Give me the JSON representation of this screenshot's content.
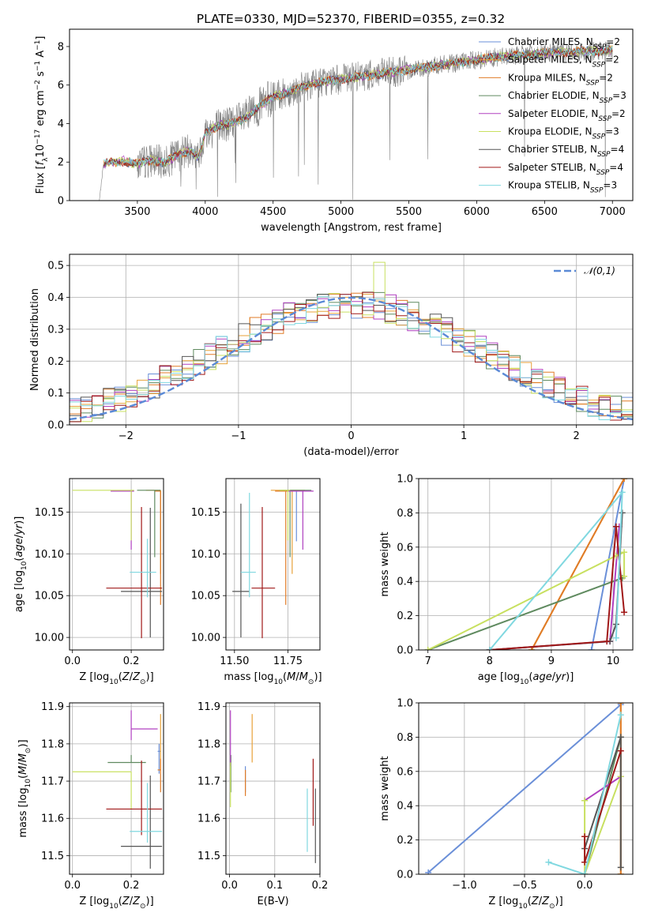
{
  "title": "PLATE=0330, MJD=52370, FIBERID=0355, z=0.32",
  "models": [
    {
      "name": "Chabrier MILES",
      "nssp": "2",
      "color": "#6a8fd8"
    },
    {
      "name": "Salpeter MILES",
      "nssp": "2",
      "color": "#e8a23a"
    },
    {
      "name": "Kroupa MILES",
      "nssp": "2",
      "color": "#e07b27"
    },
    {
      "name": "Chabrier ELODIE",
      "nssp": "3",
      "color": "#5f8a5f"
    },
    {
      "name": "Salpeter ELODIE",
      "nssp": "2",
      "color": "#b040c0"
    },
    {
      "name": "Kroupa ELODIE",
      "nssp": "3",
      "color": "#c8e060"
    },
    {
      "name": "Chabrier STELIB",
      "nssp": "4",
      "color": "#555555"
    },
    {
      "name": "Salpeter STELIB",
      "nssp": "4",
      "color": "#a01818"
    },
    {
      "name": "Kroupa STELIB",
      "nssp": "3",
      "color": "#80d8e0"
    }
  ],
  "chart_data": [
    {
      "id": "spectrum",
      "type": "line",
      "xlabel": "wavelength [Angstrom, rest frame]",
      "ylabel": "Flux [f_λ 10^-17 erg cm^-2 s^-1 A^-1]",
      "xlim": [
        3000,
        7150
      ],
      "ylim": [
        0,
        8.9
      ],
      "xticks": [
        3500,
        4000,
        4500,
        5000,
        5500,
        6000,
        6500,
        7000
      ],
      "yticks": [
        0,
        2,
        4,
        6,
        8
      ],
      "legend_loc": "upper-right",
      "x_start": 3220,
      "x_end": 7000,
      "model_continuum": {
        "x": [
          3220,
          3250,
          3400,
          3500,
          3600,
          3700,
          3800,
          3900,
          3950,
          4000,
          4100,
          4200,
          4300,
          4400,
          4500,
          4600,
          4800,
          5000,
          5200,
          5400,
          5600,
          5800,
          6000,
          6200,
          6400,
          6600,
          6800,
          7000
        ],
        "y": [
          0,
          1.9,
          2.05,
          1.9,
          2.1,
          1.95,
          2.4,
          2.6,
          2.2,
          3.5,
          3.9,
          4.0,
          4.3,
          4.9,
          5.4,
          5.6,
          6.1,
          6.3,
          6.5,
          6.7,
          6.9,
          7.1,
          7.3,
          7.5,
          7.6,
          7.7,
          7.75,
          7.8
        ]
      },
      "grey_color": "#808080"
    },
    {
      "id": "residuals",
      "type": "histogram",
      "xlabel": "(data-model)/error",
      "ylabel": "Normed distribution",
      "xlim": [
        -2.5,
        2.5
      ],
      "ylim": [
        0,
        0.535
      ],
      "xticks": [
        -2,
        -1,
        0,
        1,
        2
      ],
      "yticks": [
        0,
        0.1,
        0.2,
        0.3,
        0.4,
        0.5
      ],
      "grid": true,
      "bin_width": 0.1,
      "reference": {
        "name": "𝒩(0,1)",
        "color": "#5b8ad6",
        "style": "dashed"
      },
      "legend_loc": "upper-right"
    },
    {
      "id": "age_vs_Z",
      "type": "errorbar",
      "xlabel": "Z [log10(Z/Z⊙)]",
      "ylabel": "age [log10(age/yr)]",
      "xlim": [
        -0.01,
        0.31
      ],
      "ylim": [
        9.985,
        10.19
      ],
      "xticks": [
        0.0,
        0.2
      ],
      "yticks": [
        10.0,
        10.05,
        10.1,
        10.15
      ],
      "grid": true,
      "points": [
        {
          "model": 0,
          "x": 0.3,
          "y": 10.175,
          "xlo": 0.01,
          "xhi": 0.0,
          "ylo": 0.06,
          "yhi": 0.0
        },
        {
          "model": 1,
          "x": 0.3,
          "y": 10.176,
          "xlo": 0.05,
          "xhi": 0.0,
          "ylo": 0.1,
          "yhi": 0.0
        },
        {
          "model": 2,
          "x": 0.3,
          "y": 10.175,
          "xlo": 0.02,
          "xhi": 0.0,
          "ylo": 0.136,
          "yhi": 0.0
        },
        {
          "model": 3,
          "x": 0.28,
          "y": 10.176,
          "xlo": 0.06,
          "xhi": 0.02,
          "ylo": 0.08,
          "yhi": 0.0
        },
        {
          "model": 4,
          "x": 0.2,
          "y": 10.175,
          "xlo": 0.07,
          "xhi": 0.01,
          "ylo": 0.07,
          "yhi": 0.0
        },
        {
          "model": 5,
          "x": 0.2,
          "y": 10.176,
          "xlo": 0.2,
          "xhi": 0.01,
          "ylo": 0.06,
          "yhi": 0.0
        },
        {
          "model": 6,
          "x": 0.265,
          "y": 10.055,
          "xlo": 0.1,
          "xhi": 0.04,
          "ylo": 0.055,
          "yhi": 0.1
        },
        {
          "model": 7,
          "x": 0.235,
          "y": 10.059,
          "xlo": 0.12,
          "xhi": 0.07,
          "ylo": 0.06,
          "yhi": 0.097
        },
        {
          "model": 8,
          "x": 0.255,
          "y": 10.078,
          "xlo": 0.06,
          "xhi": 0.03,
          "ylo": 0.03,
          "yhi": 0.04
        }
      ]
    },
    {
      "id": "age_vs_mass",
      "type": "errorbar",
      "xlabel": "mass [log10(M/M⊙)]",
      "ylabel": "",
      "xlim": [
        11.46,
        11.9
      ],
      "ylim": [
        9.985,
        10.19
      ],
      "xticks": [
        11.5,
        11.75
      ],
      "yticks": [
        10.0,
        10.05,
        10.1,
        10.15
      ],
      "grid": true,
      "points": [
        {
          "model": 0,
          "x": 11.79,
          "y": 10.175,
          "xlo": 0.03,
          "xhi": 0.05,
          "ylo": 0.06,
          "yhi": 0.0
        },
        {
          "model": 1,
          "x": 11.77,
          "y": 10.176,
          "xlo": 0.1,
          "xhi": 0.06,
          "ylo": 0.1,
          "yhi": 0.0
        },
        {
          "model": 2,
          "x": 11.74,
          "y": 10.175,
          "xlo": 0.05,
          "xhi": 0.05,
          "ylo": 0.136,
          "yhi": 0.0
        },
        {
          "model": 3,
          "x": 11.76,
          "y": 10.176,
          "xlo": 0.05,
          "xhi": 0.1,
          "ylo": 0.08,
          "yhi": 0.0
        },
        {
          "model": 4,
          "x": 11.82,
          "y": 10.175,
          "xlo": 0.07,
          "xhi": 0.05,
          "ylo": 0.07,
          "yhi": 0.0
        },
        {
          "model": 5,
          "x": 11.75,
          "y": 10.176,
          "xlo": 0.04,
          "xhi": 0.01,
          "ylo": 0.06,
          "yhi": 0.0
        },
        {
          "model": 6,
          "x": 11.53,
          "y": 10.055,
          "xlo": 0.04,
          "xhi": 0.04,
          "ylo": 0.055,
          "yhi": 0.105
        },
        {
          "model": 7,
          "x": 11.63,
          "y": 10.059,
          "xlo": 0.05,
          "xhi": 0.06,
          "ylo": 0.06,
          "yhi": 0.097
        },
        {
          "model": 8,
          "x": 11.57,
          "y": 10.078,
          "xlo": 0.04,
          "xhi": 0.03,
          "ylo": 0.03,
          "yhi": 0.095
        }
      ]
    },
    {
      "id": "weight_vs_age",
      "type": "line",
      "xlabel": "age [log10(age/yr)]",
      "ylabel": "mass weight",
      "xlim": [
        6.85,
        10.32
      ],
      "ylim": [
        0,
        1.0
      ],
      "xticks": [
        7,
        8,
        9,
        10
      ],
      "yticks": [
        0.0,
        0.2,
        0.4,
        0.6,
        0.8,
        1.0
      ],
      "grid": true,
      "series": [
        {
          "model": 0,
          "x": [
            9.65,
            10.18
          ],
          "y": [
            0.0,
            1.0
          ]
        },
        {
          "model": 1,
          "x": [
            8.68,
            10.18
          ],
          "y": [
            0.0,
            1.0
          ]
        },
        {
          "model": 2,
          "x": [
            8.68,
            10.18
          ],
          "y": [
            0.0,
            1.0
          ]
        },
        {
          "model": 3,
          "x": [
            7.0,
            10.15
          ],
          "y": [
            0.0,
            0.42
          ]
        },
        {
          "model": 4,
          "x": [
            8.0,
            9.95,
            10.1
          ],
          "y": [
            0.0,
            0.05,
            0.72
          ]
        },
        {
          "model": 5,
          "x": [
            7.0,
            10.05,
            10.18,
            10.18
          ],
          "y": [
            0.0,
            0.55,
            0.57,
            0.43
          ]
        },
        {
          "model": 6,
          "x": [
            8.0,
            9.95,
            10.05,
            10.15
          ],
          "y": [
            0.0,
            0.05,
            0.15,
            0.8
          ]
        },
        {
          "model": 7,
          "x": [
            8.0,
            9.9,
            10.05,
            10.18
          ],
          "y": [
            0.0,
            0.05,
            0.72,
            0.22
          ]
        },
        {
          "model": 8,
          "x": [
            8.0,
            10.15,
            10.05
          ],
          "y": [
            0.0,
            0.92,
            0.07
          ]
        }
      ]
    },
    {
      "id": "mass_vs_Z",
      "type": "errorbar",
      "xlabel": "Z [log10(Z/Z⊙)]",
      "ylabel": "mass [log10(M/M⊙)]",
      "xlim": [
        -0.01,
        0.31
      ],
      "ylim": [
        11.45,
        11.91
      ],
      "xticks": [
        0.0,
        0.2
      ],
      "yticks": [
        11.5,
        11.6,
        11.7,
        11.8,
        11.9
      ],
      "grid": true,
      "points": [
        {
          "model": 0,
          "x": 0.295,
          "y": 11.78,
          "xlo": 0.005,
          "xhi": 0.005,
          "ylo": 0.06,
          "yhi": 0.02
        },
        {
          "model": 1,
          "x": 0.3,
          "y": 11.84,
          "xlo": 0.0,
          "xhi": 0.0,
          "ylo": 0.11,
          "yhi": 0.04
        },
        {
          "model": 2,
          "x": 0.3,
          "y": 11.73,
          "xlo": 0.01,
          "xhi": 0.0,
          "ylo": 0.06,
          "yhi": 0.03
        },
        {
          "model": 3,
          "x": 0.2,
          "y": 11.75,
          "xlo": 0.08,
          "xhi": 0.05,
          "ylo": 0.0,
          "yhi": 0.02
        },
        {
          "model": 4,
          "x": 0.2,
          "y": 11.84,
          "xlo": 0.0,
          "xhi": 0.09,
          "ylo": 0.03,
          "yhi": 0.05
        },
        {
          "model": 5,
          "x": 0.2,
          "y": 11.725,
          "xlo": 0.2,
          "xhi": 0.0,
          "ylo": 0.1,
          "yhi": 0.0
        },
        {
          "model": 6,
          "x": 0.265,
          "y": 11.525,
          "xlo": 0.1,
          "xhi": 0.04,
          "ylo": 0.06,
          "yhi": 0.19
        },
        {
          "model": 7,
          "x": 0.235,
          "y": 11.625,
          "xlo": 0.12,
          "xhi": 0.07,
          "ylo": 0.07,
          "yhi": 0.13
        },
        {
          "model": 8,
          "x": 0.255,
          "y": 11.565,
          "xlo": 0.06,
          "xhi": 0.05,
          "ylo": 0.03,
          "yhi": 0.13
        }
      ]
    },
    {
      "id": "mass_vs_ebv",
      "type": "errorbar",
      "xlabel": "E(B-V)",
      "ylabel": "",
      "xlim": [
        -0.008,
        0.2
      ],
      "ylim": [
        11.45,
        11.91
      ],
      "xticks": [
        0.0,
        0.1,
        0.2
      ],
      "yticks": [
        11.5,
        11.6,
        11.7,
        11.8,
        11.9
      ],
      "grid": true,
      "points": [
        {
          "model": 0,
          "x": 0.035,
          "y": 11.7,
          "xlo": 0.0,
          "xhi": 0.0,
          "ylo": 0.03,
          "yhi": 0.04
        },
        {
          "model": 1,
          "x": 0.05,
          "y": 11.81,
          "xlo": 0.0,
          "xhi": 0.0,
          "ylo": 0.06,
          "yhi": 0.07
        },
        {
          "model": 2,
          "x": 0.035,
          "y": 11.69,
          "xlo": 0.0,
          "xhi": 0.0,
          "ylo": 0.03,
          "yhi": 0.04
        },
        {
          "model": 3,
          "x": 0.003,
          "y": 11.72,
          "xlo": 0.0,
          "xhi": 0.0,
          "ylo": 0.05,
          "yhi": 0.05
        },
        {
          "model": 4,
          "x": 0.002,
          "y": 11.81,
          "xlo": 0.0,
          "xhi": 0.0,
          "ylo": 0.07,
          "yhi": 0.08
        },
        {
          "model": 5,
          "x": 0.002,
          "y": 11.7,
          "xlo": 0.0,
          "xhi": 0.0,
          "ylo": 0.07,
          "yhi": 0.05
        },
        {
          "model": 6,
          "x": 0.19,
          "y": 11.58,
          "xlo": 0.0,
          "xhi": 0.0,
          "ylo": 0.1,
          "yhi": 0.1
        },
        {
          "model": 7,
          "x": 0.185,
          "y": 11.67,
          "xlo": 0.0,
          "xhi": 0.0,
          "ylo": 0.09,
          "yhi": 0.09
        },
        {
          "model": 8,
          "x": 0.172,
          "y": 11.6,
          "xlo": 0.0,
          "xhi": 0.0,
          "ylo": 0.09,
          "yhi": 0.08
        }
      ]
    },
    {
      "id": "weight_vs_Z",
      "type": "line",
      "xlabel": "Z [log10(Z/Z⊙)]",
      "ylabel": "mass weight",
      "xlim": [
        -1.38,
        0.4
      ],
      "ylim": [
        0,
        1.0
      ],
      "xticks": [
        -1.0,
        -0.5,
        0.0
      ],
      "yticks": [
        0.0,
        0.2,
        0.4,
        0.6,
        0.8,
        1.0
      ],
      "grid": true,
      "series": [
        {
          "model": 0,
          "x": [
            -1.3,
            0.3
          ],
          "y": [
            0.01,
            0.99
          ]
        },
        {
          "model": 1,
          "x": [
            0.3,
            0.3
          ],
          "y": [
            0.0,
            1.0
          ]
        },
        {
          "model": 2,
          "x": [
            0.3,
            0.3
          ],
          "y": [
            0.0,
            1.0
          ]
        },
        {
          "model": 3,
          "x": [
            0.0,
            0.3
          ],
          "y": [
            0.0,
            0.8
          ]
        },
        {
          "model": 4,
          "x": [
            0.0,
            0.3
          ],
          "y": [
            0.43,
            0.57
          ]
        },
        {
          "model": 5,
          "x": [
            0.0,
            0.0,
            0.3
          ],
          "y": [
            0.43,
            0.0,
            0.57
          ]
        },
        {
          "model": 6,
          "x": [
            0.0,
            0.3,
            0.3
          ],
          "y": [
            0.15,
            0.8,
            0.04
          ]
        },
        {
          "model": 7,
          "x": [
            0.0,
            0.0,
            0.3
          ],
          "y": [
            0.22,
            0.07,
            0.72
          ]
        },
        {
          "model": 8,
          "x": [
            -0.3,
            0.0,
            0.3
          ],
          "y": [
            0.07,
            0.0,
            0.93
          ]
        }
      ]
    }
  ]
}
